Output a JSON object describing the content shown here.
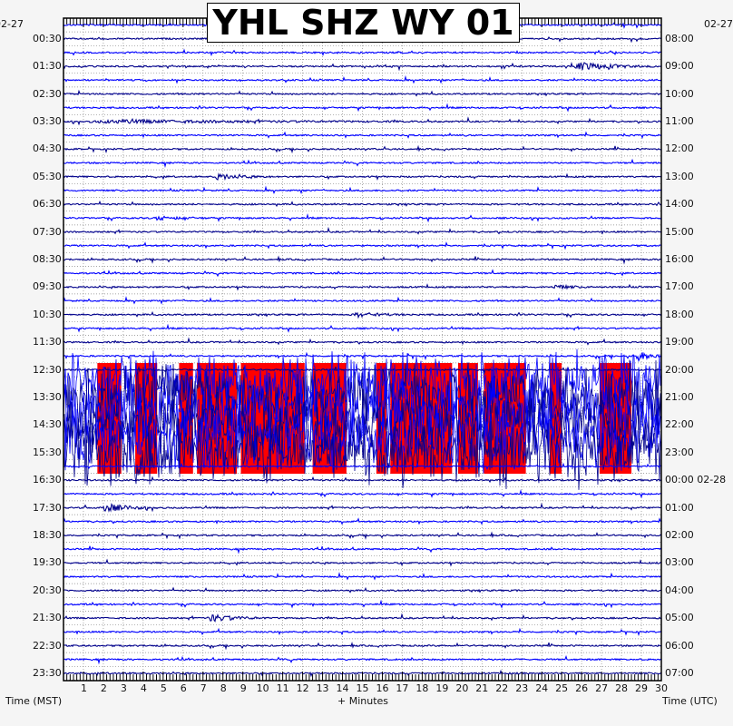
{
  "title": "YHL SHZ WY 01",
  "date_left": "02-27",
  "date_right": "02-27",
  "left_labels": [
    "00:30",
    "01:30",
    "02:30",
    "03:30",
    "04:30",
    "05:30",
    "06:30",
    "07:30",
    "08:30",
    "09:30",
    "10:30",
    "11:30",
    "12:30",
    "13:30",
    "14:30",
    "15:30",
    "16:30",
    "17:30",
    "18:30",
    "19:30",
    "20:30",
    "21:30",
    "22:30",
    "23:30"
  ],
  "right_labels": [
    "08:00",
    "09:00",
    "10:00",
    "11:00",
    "12:00",
    "13:00",
    "14:00",
    "15:00",
    "16:00",
    "17:00",
    "18:00",
    "19:00",
    "20:00",
    "21:00",
    "22:00",
    "23:00",
    "00:00 02-28",
    "01:00",
    "02:00",
    "03:00",
    "04:00",
    "05:00",
    "06:00",
    "07:00"
  ],
  "x_ticks": [
    "1",
    "2",
    "3",
    "4",
    "5",
    "6",
    "7",
    "8",
    "9",
    "10",
    "11",
    "12",
    "13",
    "14",
    "15",
    "16",
    "17",
    "18",
    "19",
    "20",
    "21",
    "22",
    "23",
    "24",
    "25",
    "26",
    "27",
    "28",
    "29",
    "30"
  ],
  "xlabel_left": "Time (MST)",
  "xlabel_center": "+ Minutes",
  "xlabel_right": "Time (UTC)",
  "colors": {
    "trace_a": "#0000ff",
    "trace_b": "#00008b",
    "clipped": "#ff0000",
    "grid": "#888888"
  },
  "chart_data": {
    "type": "line",
    "title": "YHL SHZ WY 01",
    "xlabel": "+ Minutes",
    "x_range": [
      0,
      30
    ],
    "rows": 48,
    "row_minutes": 30,
    "grid": true,
    "noisy_rows": [
      26,
      27,
      28,
      29,
      30,
      31
    ],
    "events": [
      {
        "row": 3,
        "minute": 25.6,
        "amplitude": 6,
        "duration": 4
      },
      {
        "row": 7,
        "minute": 1,
        "amplitude": 2,
        "duration": 18
      },
      {
        "row": 11,
        "minute": 7.5,
        "amplitude": 4,
        "duration": 3
      },
      {
        "row": 14,
        "minute": 4.5,
        "amplitude": 2.5,
        "duration": 3
      },
      {
        "row": 19,
        "minute": 24.5,
        "amplitude": 3,
        "duration": 2
      },
      {
        "row": 21,
        "minute": 14.5,
        "amplitude": 3,
        "duration": 3
      },
      {
        "row": 24,
        "minute": 28.7,
        "amplitude": 8,
        "duration": 1.3
      },
      {
        "row": 35,
        "minute": 1.8,
        "amplitude": 6,
        "duration": 3
      },
      {
        "row": 43,
        "minute": 7.2,
        "amplitude": 5,
        "duration": 3
      }
    ],
    "clipped_intervals": [
      [
        1.7,
        2.9
      ],
      [
        3.6,
        4.7
      ],
      [
        5.8,
        6.5
      ],
      [
        6.7,
        8.7
      ],
      [
        8.9,
        12.1
      ],
      [
        12.5,
        14.2
      ],
      [
        15.7,
        16.2
      ],
      [
        16.4,
        19.5
      ],
      [
        19.8,
        20.8
      ],
      [
        21.1,
        23.2
      ],
      [
        24.4,
        25.0
      ],
      [
        26.9,
        28.5
      ]
    ]
  }
}
